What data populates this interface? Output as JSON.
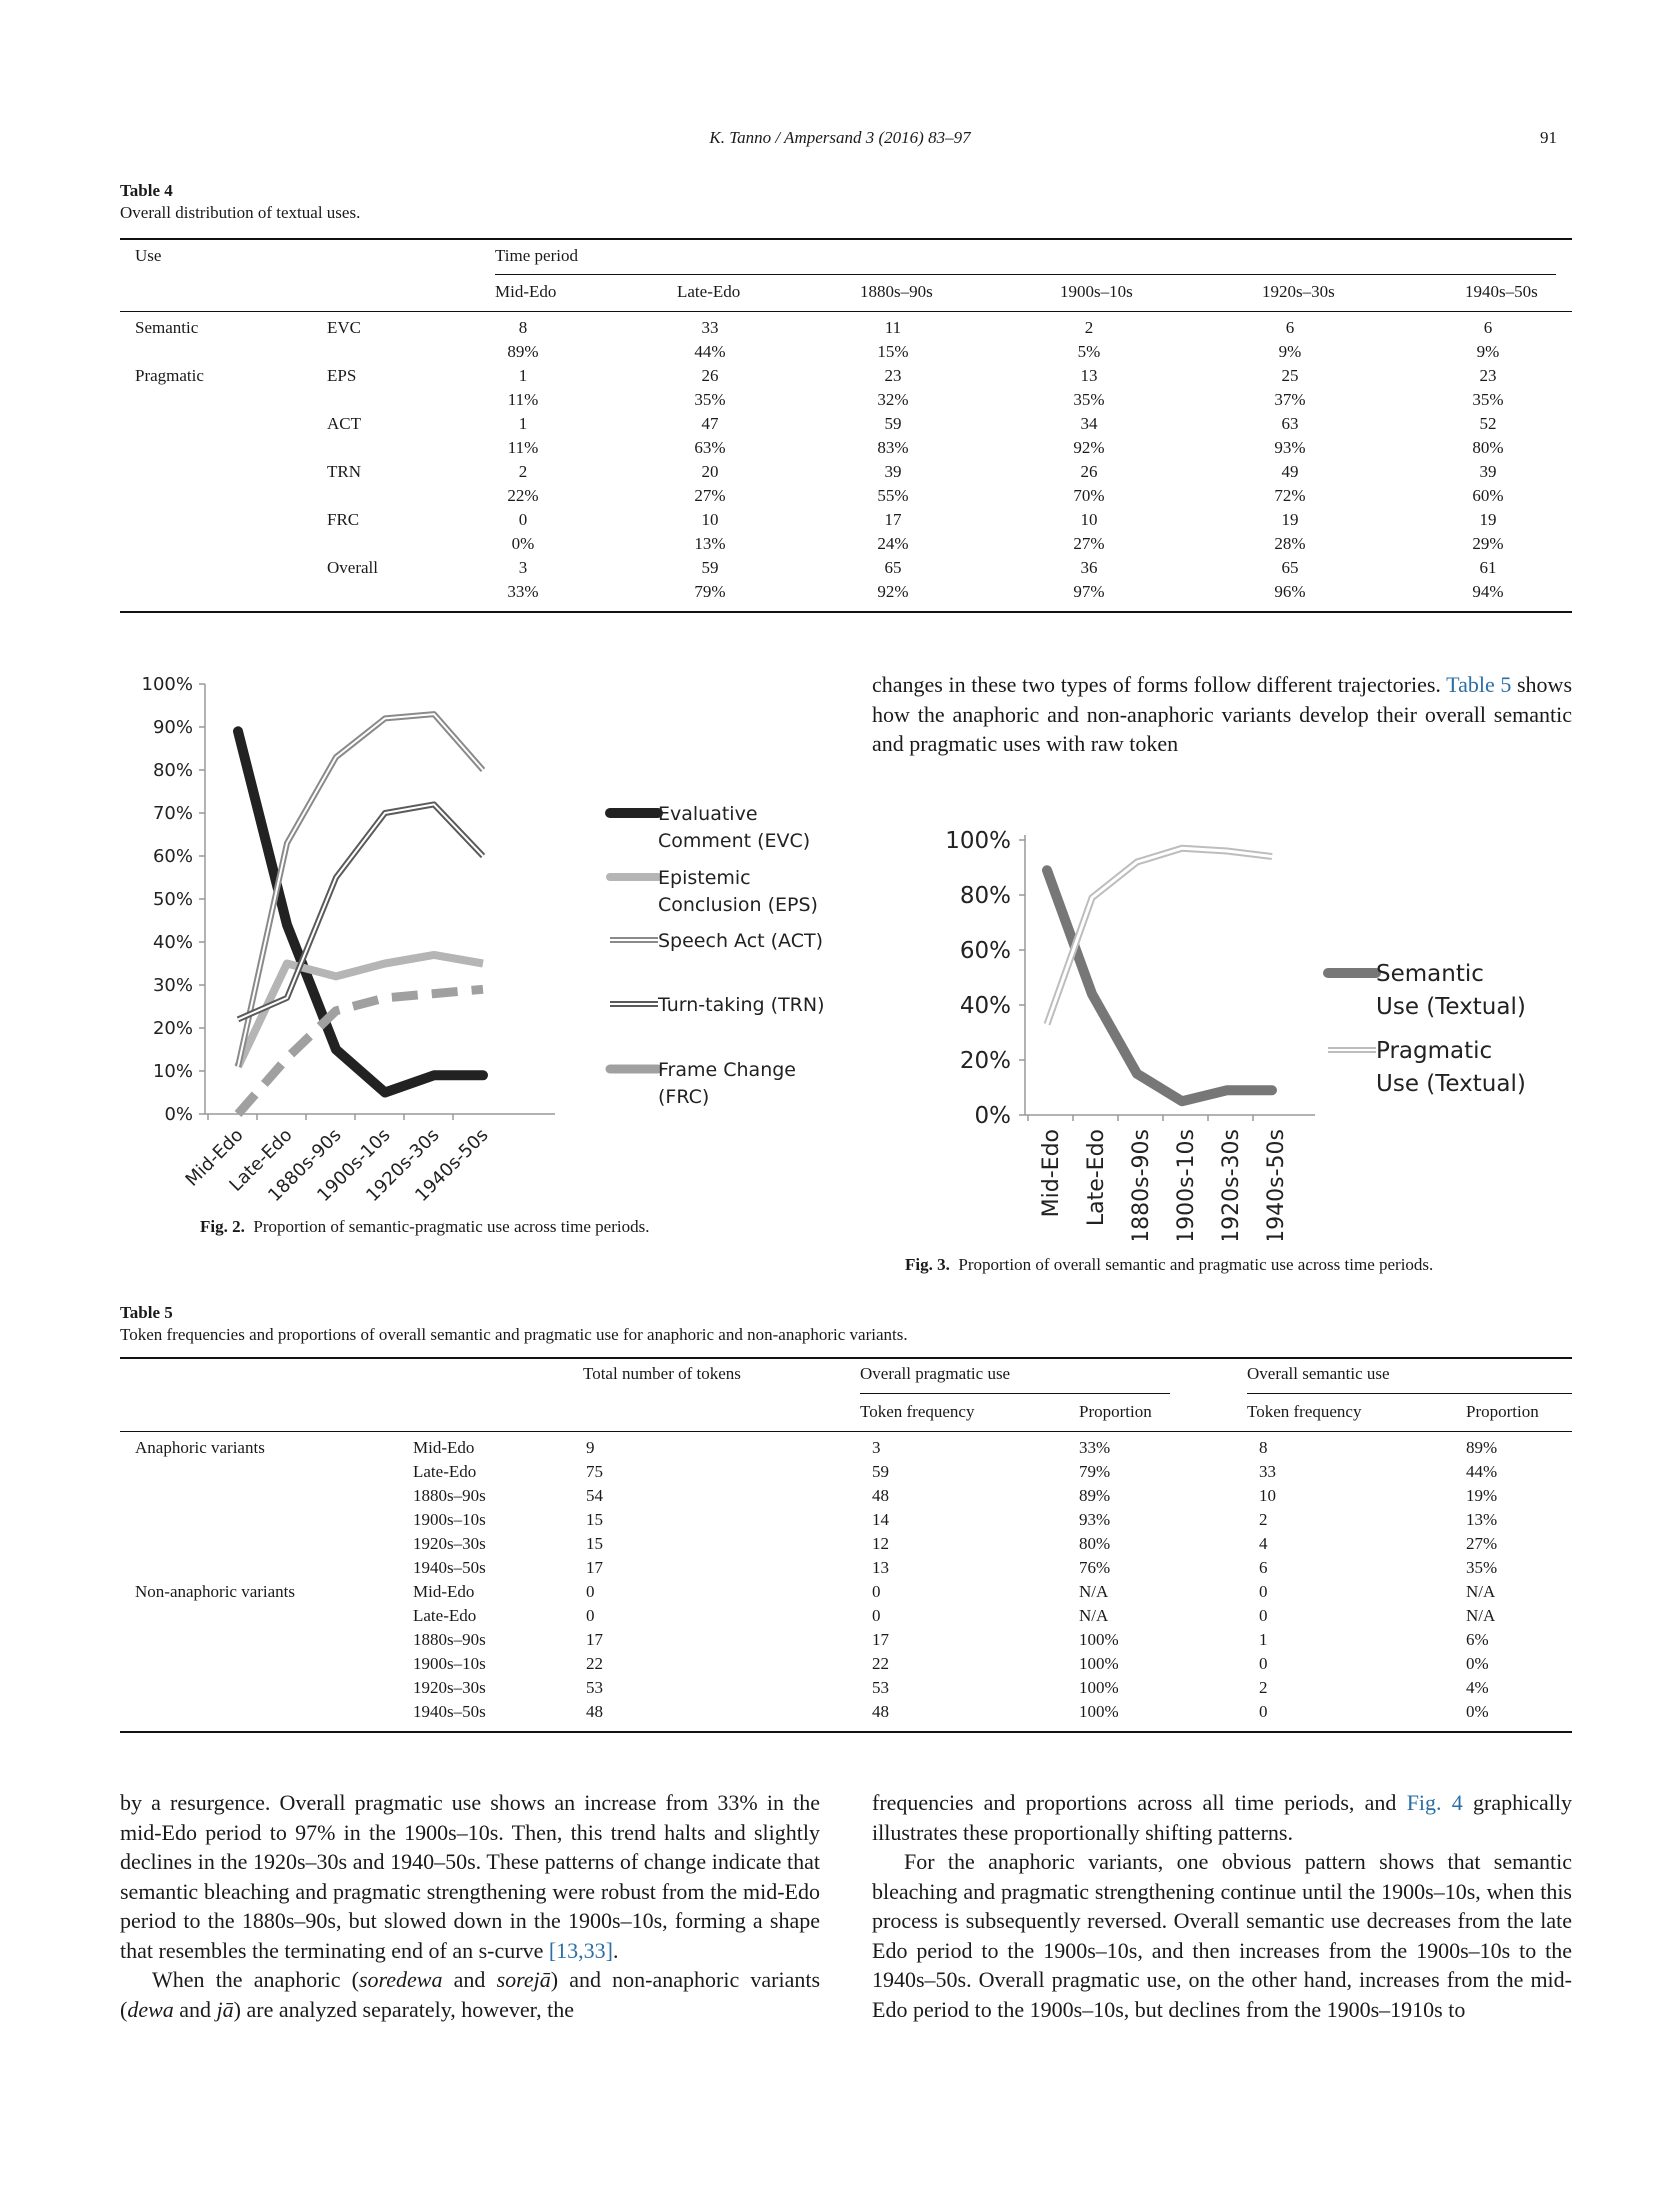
{
  "header": {
    "journal": "K. Tanno / Ampersand 3 (2016) 83–97",
    "page": "91"
  },
  "table4": {
    "label": "Table 4",
    "caption": "Overall distribution of textual uses.",
    "use_header": "Use",
    "time_header": "Time period",
    "periods": [
      "Mid-Edo",
      "Late-Edo",
      "1880s–90s",
      "1900s–10s",
      "1920s–30s",
      "1940s–50s"
    ],
    "rows": [
      {
        "group": "Semantic",
        "sub": "EVC",
        "counts": [
          "8",
          "33",
          "11",
          "2",
          "6",
          "6"
        ],
        "pcts": [
          "89%",
          "44%",
          "15%",
          "5%",
          "9%",
          "9%"
        ]
      },
      {
        "group": "Pragmatic",
        "sub": "EPS",
        "counts": [
          "1",
          "26",
          "23",
          "13",
          "25",
          "23"
        ],
        "pcts": [
          "11%",
          "35%",
          "32%",
          "35%",
          "37%",
          "35%"
        ]
      },
      {
        "group": "",
        "sub": "ACT",
        "counts": [
          "1",
          "47",
          "59",
          "34",
          "63",
          "52"
        ],
        "pcts": [
          "11%",
          "63%",
          "83%",
          "92%",
          "93%",
          "80%"
        ]
      },
      {
        "group": "",
        "sub": "TRN",
        "counts": [
          "2",
          "20",
          "39",
          "26",
          "49",
          "39"
        ],
        "pcts": [
          "22%",
          "27%",
          "55%",
          "70%",
          "72%",
          "60%"
        ]
      },
      {
        "group": "",
        "sub": "FRC",
        "counts": [
          "0",
          "10",
          "17",
          "10",
          "19",
          "19"
        ],
        "pcts": [
          "0%",
          "13%",
          "24%",
          "27%",
          "28%",
          "29%"
        ]
      },
      {
        "group": "",
        "sub": "Overall",
        "counts": [
          "3",
          "59",
          "65",
          "36",
          "65",
          "61"
        ],
        "pcts": [
          "33%",
          "79%",
          "92%",
          "97%",
          "96%",
          "94%"
        ]
      }
    ]
  },
  "fig2": {
    "label": "Fig. 2.",
    "caption": "Proportion of semantic-pragmatic use across time periods."
  },
  "fig3": {
    "label": "Fig. 3.",
    "caption": "Proportion of overall semantic and pragmatic use across time periods."
  },
  "chart_data": [
    {
      "type": "line",
      "title": "",
      "categories": [
        "Mid-Edo",
        "Late-Edo",
        "1880s-90s",
        "1900s-10s",
        "1920s-30s",
        "1940s-50s"
      ],
      "y_ticks": [
        "0%",
        "10%",
        "20%",
        "30%",
        "40%",
        "50%",
        "60%",
        "70%",
        "80%",
        "90%",
        "100%"
      ],
      "ylim": [
        0,
        100
      ],
      "legend_position": "right",
      "series": [
        {
          "name": "Evaluative Comment (EVC)",
          "values": [
            89,
            44,
            15,
            5,
            9,
            9
          ],
          "color": "#222222",
          "style": "solid-thick"
        },
        {
          "name": "Epistemic Conclusion (EPS)",
          "values": [
            11,
            35,
            32,
            35,
            37,
            35
          ],
          "color": "#b5b5b5",
          "style": "solid"
        },
        {
          "name": "Speech Act (ACT)",
          "values": [
            11,
            63,
            83,
            92,
            93,
            80
          ],
          "color": "#8a8a8a",
          "style": "double"
        },
        {
          "name": "Turn-taking (TRN)",
          "values": [
            22,
            27,
            55,
            70,
            72,
            60
          ],
          "color": "#5a5a5a",
          "style": "double"
        },
        {
          "name": "Frame Change (FRC)",
          "values": [
            0,
            13,
            24,
            27,
            28,
            29
          ],
          "color": "#a0a0a0",
          "style": "dashed"
        }
      ]
    },
    {
      "type": "line",
      "title": "",
      "categories": [
        "Mid-Edo",
        "Late-Edo",
        "1880s-90s",
        "1900s-10s",
        "1920s-30s",
        "1940s-50s"
      ],
      "y_ticks": [
        "0%",
        "20%",
        "40%",
        "60%",
        "80%",
        "100%"
      ],
      "ylim": [
        0,
        100
      ],
      "legend_position": "right",
      "series": [
        {
          "name": "Semantic Use (Textual)",
          "values": [
            89,
            44,
            15,
            5,
            9,
            9
          ],
          "color": "#777777",
          "style": "solid-thick"
        },
        {
          "name": "Pragmatic Use (Textual)",
          "values": [
            33,
            79,
            92,
            97,
            96,
            94
          ],
          "color": "#bdbdbd",
          "style": "double"
        }
      ]
    }
  ],
  "right_para_top": {
    "before_link": "changes in these two types of forms follow different trajectories.",
    "link": "Table 5",
    "after_link": "shows how the anaphoric and non-anaphoric variants develop their overall semantic and pragmatic uses with raw token"
  },
  "table5": {
    "label": "Table 5",
    "caption": "Token frequencies and proportions of overall semantic and pragmatic use for anaphoric and non-anaphoric variants.",
    "col_total": "Total number of tokens",
    "col_prag": "Overall pragmatic use",
    "col_sem": "Overall semantic use",
    "col_tf": "Token frequency",
    "col_prop": "Proportion",
    "rows": [
      {
        "group": "Anaphoric variants",
        "period": "Mid-Edo",
        "total": "9",
        "ptf": "3",
        "pprop": "33%",
        "stf": "8",
        "sprop": "89%"
      },
      {
        "group": "",
        "period": "Late-Edo",
        "total": "75",
        "ptf": "59",
        "pprop": "79%",
        "stf": "33",
        "sprop": "44%"
      },
      {
        "group": "",
        "period": "1880s–90s",
        "total": "54",
        "ptf": "48",
        "pprop": "89%",
        "stf": "10",
        "sprop": "19%"
      },
      {
        "group": "",
        "period": "1900s–10s",
        "total": "15",
        "ptf": "14",
        "pprop": "93%",
        "stf": "2",
        "sprop": "13%"
      },
      {
        "group": "",
        "period": "1920s–30s",
        "total": "15",
        "ptf": "12",
        "pprop": "80%",
        "stf": "4",
        "sprop": "27%"
      },
      {
        "group": "",
        "period": "1940s–50s",
        "total": "17",
        "ptf": "13",
        "pprop": "76%",
        "stf": "6",
        "sprop": "35%"
      },
      {
        "group": "Non-anaphoric variants",
        "period": "Mid-Edo",
        "total": "0",
        "ptf": "0",
        "pprop": "N/A",
        "stf": "0",
        "sprop": "N/A"
      },
      {
        "group": "",
        "period": "Late-Edo",
        "total": "0",
        "ptf": "0",
        "pprop": "N/A",
        "stf": "0",
        "sprop": "N/A"
      },
      {
        "group": "",
        "period": "1880s–90s",
        "total": "17",
        "ptf": "17",
        "pprop": "100%",
        "stf": "1",
        "sprop": "6%"
      },
      {
        "group": "",
        "period": "1900s–10s",
        "total": "22",
        "ptf": "22",
        "pprop": "100%",
        "stf": "0",
        "sprop": "0%"
      },
      {
        "group": "",
        "period": "1920s–30s",
        "total": "53",
        "ptf": "53",
        "pprop": "100%",
        "stf": "2",
        "sprop": "4%"
      },
      {
        "group": "",
        "period": "1940s–50s",
        "total": "48",
        "ptf": "48",
        "pprop": "100%",
        "stf": "0",
        "sprop": "0%"
      }
    ]
  },
  "left_col": {
    "p1_text": "by a resurgence. Overall pragmatic use shows an increase from 33% in the mid-Edo period to 97% in the 1900s–10s. Then, this trend halts and slightly declines in the 1920s–30s and 1940–50s. These patterns of change indicate that semantic bleaching and pragmatic strengthening were robust from the mid-Edo period to the 1880s–90s, but slowed down in the 1900s–10s, forming a shape that resembles the terminating end of an s-curve",
    "p1_ref": "[13,33]",
    "p2_a": "When the anaphoric (",
    "p2_i1": "soredewa",
    "p2_b": " and ",
    "p2_i2": "sorejā",
    "p2_c": ") and non-anaphoric variants (",
    "p2_i3": "dewa",
    "p2_d": " and ",
    "p2_i4": "jā",
    "p2_e": ") are analyzed separately, however, the"
  },
  "right_col": {
    "p1_text": "frequencies and proportions across all time periods, and",
    "p1_link": "Fig. 4",
    "p1_end": "graphically illustrates these proportionally shifting patterns.",
    "p2_text": "For the anaphoric variants, one obvious pattern shows that semantic bleaching and pragmatic strengthening continue until the 1900s–10s, when this process is subsequently reversed. Overall semantic use decreases from the late Edo period to the 1900s–10s, and then increases from the 1900s–10s to the 1940s–50s. Overall pragmatic use, on the other hand, increases from the mid-Edo period to the 1900s–10s, but declines from the 1900s–1910s to"
  }
}
